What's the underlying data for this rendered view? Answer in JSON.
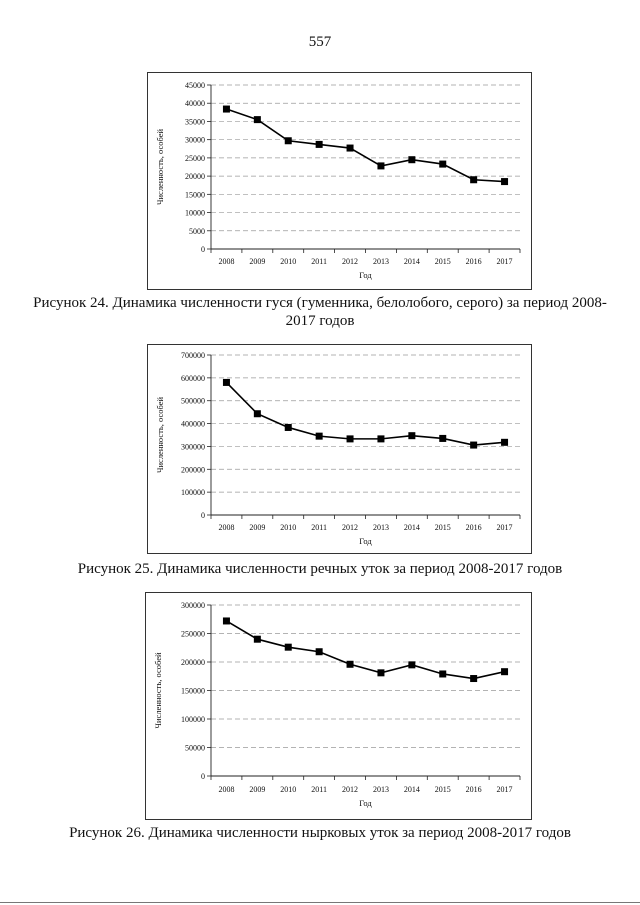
{
  "page_number": "557",
  "captions": [
    "Рисунок 24. Динамика численности гуся (гуменника, белолобого, серого) за период 2008-2017 годов",
    "Рисунок 25. Динамика численности речных уток за период 2008-2017 годов",
    "Рисунок 26. Динамика численности нырковых уток за период 2008-2017 годов"
  ],
  "chart_data": [
    {
      "type": "line",
      "x": [
        "2008",
        "2009",
        "2010",
        "2011",
        "2012",
        "2013",
        "2014",
        "2015",
        "2016",
        "2017"
      ],
      "series": [
        {
          "values": [
            38400,
            35500,
            29700,
            28700,
            27700,
            22800,
            24500,
            23300,
            19000,
            18500
          ]
        }
      ],
      "xlabel": "Год",
      "ylabel": "Численность, особей",
      "ylim": [
        0,
        45000
      ],
      "yticks": [
        "0",
        "5000",
        "10000",
        "15000",
        "20000",
        "25000",
        "30000",
        "35000",
        "40000",
        "45000"
      ],
      "grid": true,
      "marker": "square",
      "color": "#000000"
    },
    {
      "type": "line",
      "x": [
        "2008",
        "2009",
        "2010",
        "2011",
        "2012",
        "2013",
        "2014",
        "2015",
        "2016",
        "2017"
      ],
      "series": [
        {
          "values": [
            580000,
            443000,
            383000,
            345000,
            333000,
            333000,
            347000,
            335000,
            306000,
            318000
          ]
        }
      ],
      "xlabel": "Год",
      "ylabel": "Численность, особей",
      "ylim": [
        0,
        700000
      ],
      "yticks": [
        "0",
        "100000",
        "200000",
        "300000",
        "400000",
        "500000",
        "600000",
        "700000"
      ],
      "grid": true,
      "marker": "square",
      "color": "#000000"
    },
    {
      "type": "line",
      "x": [
        "2008",
        "2009",
        "2010",
        "2011",
        "2012",
        "2013",
        "2014",
        "2015",
        "2016",
        "2017"
      ],
      "series": [
        {
          "values": [
            272000,
            240000,
            226000,
            218000,
            196000,
            181000,
            195000,
            179000,
            171000,
            183000
          ]
        }
      ],
      "xlabel": "Год",
      "ylabel": "Численность, особей",
      "ylim": [
        0,
        300000
      ],
      "yticks": [
        "0",
        "50000",
        "100000",
        "150000",
        "200000",
        "250000",
        "300000"
      ],
      "grid": true,
      "marker": "square",
      "color": "#000000"
    }
  ]
}
